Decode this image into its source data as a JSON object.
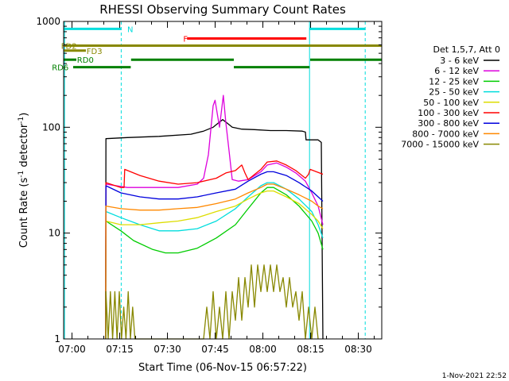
{
  "footer_timestamp": "1-Nov-2021 22:52",
  "chart_data": {
    "type": "line",
    "title": "RHESSI Observing Summary Count Rates",
    "xlabel": "Start Time (06-Nov-15 06:57:22)",
    "ylabel_parts": [
      "Count Rate (s",
      "-1",
      " detector",
      "-1",
      ")"
    ],
    "y_scale": "log",
    "ylim": [
      1,
      1000
    ],
    "xlim_minutes": [
      0,
      100
    ],
    "x_ticks": [
      {
        "label": "07:00",
        "minutes": 2.63
      },
      {
        "label": "07:15",
        "minutes": 17.63
      },
      {
        "label": "07:30",
        "minutes": 32.63
      },
      {
        "label": "07:45",
        "minutes": 47.63
      },
      {
        "label": "08:00",
        "minutes": 62.63
      },
      {
        "label": "08:15",
        "minutes": 77.63
      },
      {
        "label": "08:30",
        "minutes": 92.63
      }
    ],
    "y_ticks": [
      {
        "label": "1",
        "value": 1
      },
      {
        "label": "10",
        "value": 10
      },
      {
        "label": "100",
        "value": 100
      },
      {
        "label": "1000",
        "value": 1000
      }
    ],
    "legend": {
      "header": "Det 1,5,7, Att 0",
      "placement": "right"
    },
    "series": [
      {
        "name": "3 - 6 keV",
        "color": "#000000",
        "points": [
          [
            13.2,
            1
          ],
          [
            13.3,
            78
          ],
          [
            20,
            80
          ],
          [
            30,
            82
          ],
          [
            40,
            86
          ],
          [
            44,
            92
          ],
          [
            47,
            100
          ],
          [
            49,
            112
          ],
          [
            50,
            118
          ],
          [
            51,
            112
          ],
          [
            53,
            100
          ],
          [
            56,
            96
          ],
          [
            60,
            95
          ],
          [
            65,
            93
          ],
          [
            70,
            93
          ],
          [
            75,
            92
          ],
          [
            76,
            90
          ],
          [
            76.2,
            76
          ],
          [
            80,
            76
          ],
          [
            81,
            72
          ],
          [
            81.5,
            1
          ]
        ]
      },
      {
        "name": "6 - 12 keV",
        "color": "#dd00dd",
        "points": [
          [
            13.2,
            1
          ],
          [
            13.3,
            29
          ],
          [
            20,
            27
          ],
          [
            28,
            27
          ],
          [
            36,
            27
          ],
          [
            42,
            29
          ],
          [
            44,
            33
          ],
          [
            45.5,
            55
          ],
          [
            47,
            160
          ],
          [
            47.6,
            180
          ],
          [
            49,
            100
          ],
          [
            50.2,
            200
          ],
          [
            51,
            110
          ],
          [
            52,
            60
          ],
          [
            53,
            32
          ],
          [
            55,
            31
          ],
          [
            58,
            32
          ],
          [
            62,
            38
          ],
          [
            64,
            44
          ],
          [
            67,
            46
          ],
          [
            70,
            42
          ],
          [
            73,
            37
          ],
          [
            76,
            31
          ],
          [
            78,
            24
          ],
          [
            80,
            18
          ],
          [
            81.5,
            12
          ]
        ]
      },
      {
        "name": "12 - 25 keV",
        "color": "#00cc00",
        "points": [
          [
            13.2,
            1
          ],
          [
            13.3,
            13
          ],
          [
            18,
            10.5
          ],
          [
            22,
            8.5
          ],
          [
            28,
            7
          ],
          [
            32,
            6.5
          ],
          [
            36,
            6.5
          ],
          [
            42,
            7.2
          ],
          [
            48,
            9
          ],
          [
            54,
            12
          ],
          [
            58,
            17
          ],
          [
            62,
            24
          ],
          [
            64,
            27
          ],
          [
            66,
            27
          ],
          [
            70,
            23
          ],
          [
            74,
            18
          ],
          [
            78,
            13
          ],
          [
            80,
            10
          ],
          [
            81.5,
            7
          ]
        ]
      },
      {
        "name": "25 - 50 keV",
        "color": "#00dddd",
        "points": [
          [
            13.2,
            1
          ],
          [
            13.3,
            16
          ],
          [
            18,
            14
          ],
          [
            24,
            12
          ],
          [
            30,
            10.5
          ],
          [
            36,
            10.5
          ],
          [
            42,
            11
          ],
          [
            48,
            13
          ],
          [
            54,
            17
          ],
          [
            58,
            22
          ],
          [
            62,
            28
          ],
          [
            64,
            30
          ],
          [
            66,
            30
          ],
          [
            70,
            26
          ],
          [
            74,
            21
          ],
          [
            78,
            16
          ],
          [
            80,
            12
          ],
          [
            81.5,
            9
          ]
        ]
      },
      {
        "name": "50 - 100 keV",
        "color": "#dddd00",
        "points": [
          [
            13.2,
            1
          ],
          [
            13.3,
            13
          ],
          [
            18,
            12
          ],
          [
            24,
            12
          ],
          [
            30,
            12.5
          ],
          [
            36,
            13
          ],
          [
            42,
            14
          ],
          [
            48,
            16
          ],
          [
            54,
            18
          ],
          [
            58,
            21
          ],
          [
            62,
            24
          ],
          [
            64,
            25
          ],
          [
            66,
            25
          ],
          [
            70,
            22
          ],
          [
            74,
            19
          ],
          [
            78,
            15
          ],
          [
            80,
            13
          ],
          [
            81.5,
            11
          ]
        ]
      },
      {
        "name": "100 - 300 keV",
        "color": "#ff0000",
        "points": [
          [
            13.2,
            1
          ],
          [
            13.3,
            30
          ],
          [
            18,
            27
          ],
          [
            19,
            27
          ],
          [
            19.2,
            40
          ],
          [
            24,
            35
          ],
          [
            30,
            31
          ],
          [
            36,
            29
          ],
          [
            42,
            30
          ],
          [
            48,
            33
          ],
          [
            51,
            37
          ],
          [
            54,
            39
          ],
          [
            56,
            44
          ],
          [
            57,
            37
          ],
          [
            58,
            32
          ],
          [
            62,
            40
          ],
          [
            64,
            47
          ],
          [
            67,
            48
          ],
          [
            70,
            44
          ],
          [
            73,
            39
          ],
          [
            76,
            33
          ],
          [
            77,
            36
          ],
          [
            77.5,
            40
          ],
          [
            81.5,
            36
          ]
        ]
      },
      {
        "name": "300 - 800 keV",
        "color": "#0000dd",
        "points": [
          [
            13.2,
            1
          ],
          [
            13.3,
            28
          ],
          [
            18,
            24
          ],
          [
            24,
            22
          ],
          [
            30,
            21
          ],
          [
            36,
            21
          ],
          [
            42,
            22
          ],
          [
            48,
            24
          ],
          [
            54,
            26
          ],
          [
            58,
            31
          ],
          [
            62,
            36
          ],
          [
            64,
            38
          ],
          [
            66,
            38
          ],
          [
            70,
            35
          ],
          [
            74,
            30
          ],
          [
            78,
            25
          ],
          [
            80,
            22
          ],
          [
            81.5,
            20
          ]
        ]
      },
      {
        "name": "800 - 7000 keV",
        "color": "#ff8800",
        "points": [
          [
            13.2,
            1
          ],
          [
            13.3,
            18
          ],
          [
            18,
            17
          ],
          [
            24,
            16.5
          ],
          [
            30,
            16.5
          ],
          [
            36,
            17
          ],
          [
            42,
            17.5
          ],
          [
            48,
            19
          ],
          [
            54,
            21
          ],
          [
            58,
            24
          ],
          [
            62,
            27
          ],
          [
            64,
            29
          ],
          [
            66,
            29
          ],
          [
            70,
            26
          ],
          [
            74,
            23
          ],
          [
            78,
            20
          ],
          [
            80,
            18
          ],
          [
            81.5,
            17
          ]
        ]
      },
      {
        "name": "7000 - 15000 keV",
        "color": "#888800",
        "points": [
          [
            13.3,
            1
          ],
          [
            13.3,
            2.8
          ],
          [
            14,
            1
          ],
          [
            14.7,
            2.8
          ],
          [
            15.4,
            1
          ],
          [
            16.1,
            2.8
          ],
          [
            16.8,
            1
          ],
          [
            17.5,
            2.8
          ],
          [
            18.2,
            1
          ],
          [
            18.9,
            2
          ],
          [
            19.6,
            1
          ],
          [
            20.3,
            2.8
          ],
          [
            21,
            1
          ],
          [
            21.7,
            2
          ],
          [
            22.4,
            1
          ],
          [
            44,
            1
          ],
          [
            45,
            2
          ],
          [
            46,
            1
          ],
          [
            47,
            2.8
          ],
          [
            48,
            1
          ],
          [
            49,
            2
          ],
          [
            50,
            1
          ],
          [
            51,
            2.8
          ],
          [
            52,
            1
          ],
          [
            53,
            2.8
          ],
          [
            54,
            1.5
          ],
          [
            55,
            3.8
          ],
          [
            56,
            1.5
          ],
          [
            57,
            3.8
          ],
          [
            58,
            2
          ],
          [
            59,
            5
          ],
          [
            60,
            2
          ],
          [
            61,
            5
          ],
          [
            62,
            2.8
          ],
          [
            63,
            5
          ],
          [
            64,
            2.8
          ],
          [
            65,
            5
          ],
          [
            66,
            2.8
          ],
          [
            67,
            5
          ],
          [
            68,
            2.8
          ],
          [
            69,
            3.8
          ],
          [
            70,
            2
          ],
          [
            71,
            3.8
          ],
          [
            72,
            2
          ],
          [
            73,
            2.8
          ],
          [
            74,
            1.5
          ],
          [
            75,
            2.8
          ],
          [
            76,
            1
          ],
          [
            77,
            2
          ],
          [
            78,
            1
          ],
          [
            79,
            2
          ],
          [
            80,
            1
          ]
        ]
      }
    ],
    "vertical_markers": [
      {
        "minutes": 0.3,
        "color": "#00dddd",
        "style": "solid"
      },
      {
        "minutes": 18.1,
        "color": "#00dddd",
        "style": "dashed"
      },
      {
        "minutes": 77.3,
        "color": "#00dddd",
        "style": "solid"
      },
      {
        "minutes": 94.8,
        "color": "#00dddd",
        "style": "dashed"
      }
    ],
    "state_bars": [
      {
        "label": "N",
        "color": "#00dddd",
        "label_minutes": 20.0,
        "value": 850,
        "segments": [
          [
            0,
            18.1
          ],
          [
            77.3,
            94.8
          ]
        ]
      },
      {
        "label": "F",
        "color": "#ff0000",
        "label_minutes": 37.6,
        "value": 690,
        "segments": [
          [
            38.8,
            76.3
          ]
        ]
      },
      {
        "label": "FD2",
        "color": "#888800",
        "label_minutes": -0.8,
        "value": 590,
        "segments": [
          [
            0,
            100
          ]
        ]
      },
      {
        "label": "FD3",
        "color": "#888800",
        "label_minutes": 7.2,
        "value": 530,
        "segments": [
          [
            0,
            7
          ]
        ]
      },
      {
        "label": "RD0",
        "color": "#008000",
        "label_minutes": 4.2,
        "value": 435,
        "segments": [
          [
            0,
            4
          ],
          [
            21.2,
            53.5
          ],
          [
            77.5,
            100
          ]
        ]
      },
      {
        "label": "RD6",
        "color": "#008000",
        "label_minutes": -3.7,
        "value": 370,
        "segments": [
          [
            3.0,
            21.1
          ],
          [
            53.5,
            77.3
          ]
        ]
      }
    ]
  }
}
